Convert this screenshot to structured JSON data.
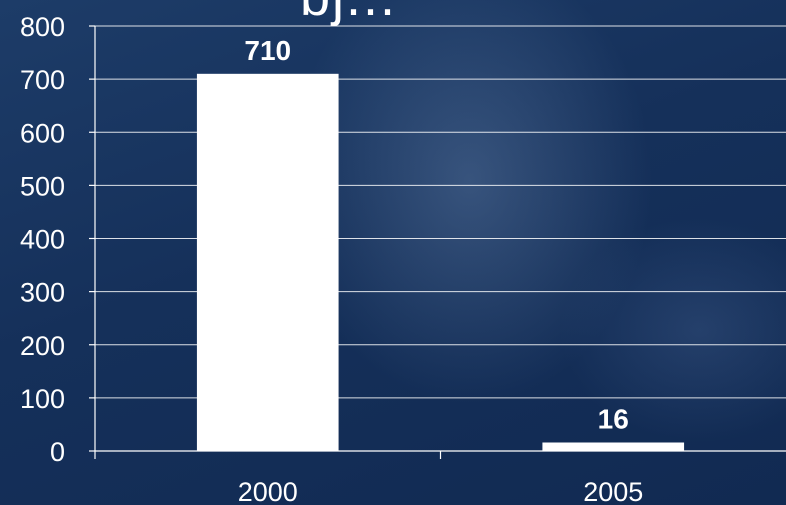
{
  "title_fragment": "bj...",
  "chart_data": {
    "type": "bar",
    "categories": [
      "2000",
      "2005"
    ],
    "values": [
      710,
      16
    ],
    "data_labels": [
      "710",
      "16"
    ],
    "ylim": [
      0,
      800
    ],
    "yticks": [
      0,
      100,
      200,
      300,
      400,
      500,
      600,
      700,
      800
    ],
    "grid": true,
    "legend": "none",
    "bar_color": "#ffffff",
    "background_color": "#16325c"
  }
}
